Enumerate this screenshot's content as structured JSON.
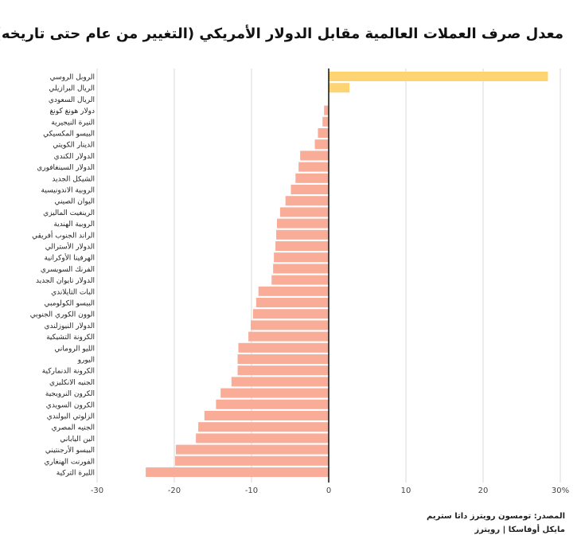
{
  "chart_data": {
    "type": "bar",
    "orientation": "horizontal",
    "title": "معدل صرف العملات العالمية مقابل الدولار الأمريكي (التغيير من عام حتى تاريخه)",
    "categories": [
      "الروبل الروسي",
      "الريال البرازيلي",
      "الريال السعودي",
      "دولار هونغ كونغ",
      "النيرة النيجيرية",
      "البيسو المكسيكي",
      "الدينار الكويتي",
      "الدولار الكندي",
      "الدولار السينغافوري",
      "الشيكل الجديد",
      "الروبية الاندونيسية",
      "اليوان الصيني",
      "الرينغيت الماليزي",
      "الروبية الهندية",
      "الراند الجنوب أفريقي",
      "الدولار الأسترالي",
      "الهرفينا الأوكرانية",
      "الفرنك السويسري",
      "الدولار تايوان الجديد",
      "البات التايلاندي",
      "البيسو الكولومبي",
      "الوون الكوري الجنوبي",
      "الدولار النيوزلندي",
      "الكرونة التشيكية",
      "الليو الروماني",
      "اليورو",
      "الكرونة الدنماركية",
      "الجنيه الانكليزي",
      "الكرون النرويجية",
      "الكرون السويدي",
      "الزلوتي البولندي",
      "الجنيه المصري",
      "الين الياباني",
      "البيسو الأرجنتيني",
      "الفورنت الهنغاري",
      "الليرة التركية"
    ],
    "values": [
      28.4,
      2.7,
      0,
      -0.6,
      -0.8,
      -1.4,
      -1.8,
      -3.7,
      -3.9,
      -4.3,
      -4.9,
      -5.6,
      -6.3,
      -6.7,
      -6.8,
      -6.9,
      -7.1,
      -7.2,
      -7.4,
      -9.1,
      -9.4,
      -9.8,
      -10.1,
      -10.4,
      -11.7,
      -11.8,
      -11.8,
      -12.6,
      -14.0,
      -14.6,
      -16.1,
      -16.9,
      -17.2,
      -19.8,
      -19.9,
      -23.7
    ],
    "positive_color": "#fcd474",
    "negative_color": "#f9ad99",
    "xlim": [
      -30,
      30
    ],
    "xticks": [
      -30,
      -20,
      -10,
      0,
      10,
      20,
      30
    ],
    "xtick_labels": [
      "-30",
      "-20",
      "-10",
      "0",
      "10",
      "20",
      "30%"
    ],
    "grid": "vertical"
  },
  "footer": {
    "source": "المصدر: تومسون رويترز داتا ستريم",
    "credit": "مايكل أوفاسكا | رويترز"
  }
}
